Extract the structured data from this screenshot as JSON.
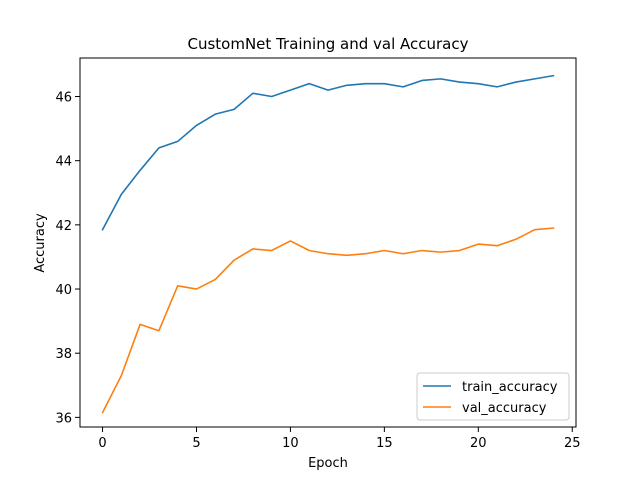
{
  "chart_data": {
    "type": "line",
    "title": "CustomNet Training and val Accuracy",
    "xlabel": "Epoch",
    "ylabel": "Accuracy",
    "xlim": [
      -1.2,
      25.2
    ],
    "ylim": [
      35.7,
      47.2
    ],
    "xticks": [
      0,
      5,
      10,
      15,
      20,
      25
    ],
    "yticks": [
      36,
      38,
      40,
      42,
      44,
      46
    ],
    "grid": false,
    "legend_position": "lower right",
    "x": [
      0,
      1,
      2,
      3,
      4,
      5,
      6,
      7,
      8,
      9,
      10,
      11,
      12,
      13,
      14,
      15,
      16,
      17,
      18,
      19,
      20,
      21,
      22,
      23,
      24
    ],
    "series": [
      {
        "name": "train_accuracy",
        "color": "#1f77b4",
        "values": [
          41.85,
          42.95,
          43.7,
          44.4,
          44.6,
          45.1,
          45.45,
          45.6,
          46.1,
          46.0,
          46.2,
          46.4,
          46.2,
          46.35,
          46.4,
          46.4,
          46.3,
          46.5,
          46.55,
          46.45,
          46.4,
          46.3,
          46.45,
          46.55,
          46.65
        ]
      },
      {
        "name": "val_accuracy",
        "color": "#ff7f0e",
        "values": [
          36.15,
          37.3,
          38.9,
          38.7,
          40.1,
          40.0,
          40.3,
          40.9,
          41.25,
          41.2,
          41.5,
          41.2,
          41.1,
          41.05,
          41.1,
          41.2,
          41.1,
          41.2,
          41.15,
          41.2,
          41.4,
          41.35,
          41.55,
          41.85,
          41.9
        ]
      }
    ]
  }
}
